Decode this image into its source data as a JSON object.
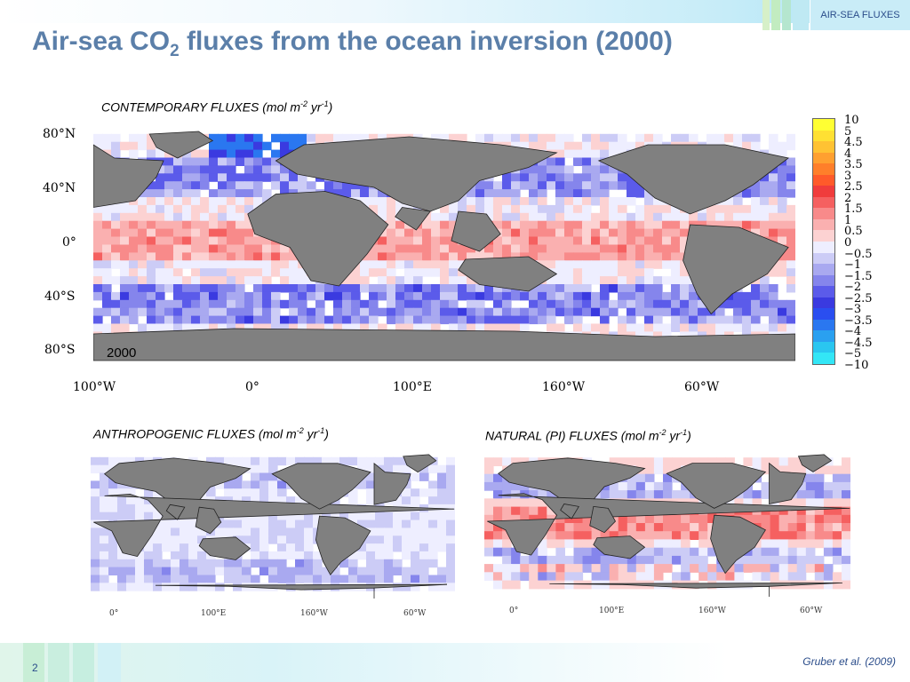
{
  "slide": {
    "section_tag": "AIR-SEA FLUXES",
    "title_main": "Air-sea CO",
    "title_sub": "2",
    "title_rest": " fluxes from the ocean inversion (2000)",
    "page_number": "2",
    "citation": "Gruber et al. (2009)"
  },
  "maps": {
    "contemporary": {
      "label_main": "CONTEMPORARY FLUXES (mol m",
      "label_exp1": "-2",
      "label_mid": " yr",
      "label_exp2": "-1",
      "label_end": ")",
      "year": "2000",
      "lat_ticks": [
        "80°N",
        "40°N",
        "0°",
        "40°S",
        "80°S"
      ],
      "lon_ticks": [
        "100°W",
        "0°",
        "100°E",
        "160°W",
        "60°W"
      ]
    },
    "anthropogenic": {
      "label_main": "ANTHROPOGENIC FLUXES (mol m",
      "label_exp1": "-2",
      "label_mid": " yr",
      "label_exp2": "-1",
      "label_end": ")",
      "lon_ticks": [
        "0°",
        "100°E",
        "160°W",
        "60°W"
      ]
    },
    "natural": {
      "label_main": "NATURAL (PI) FLUXES (mol m",
      "label_exp1": "-2",
      "label_mid": " yr",
      "label_exp2": "-1",
      "label_end": ")",
      "lon_ticks": [
        "0°",
        "100°E",
        "160°W",
        "60°W"
      ]
    }
  },
  "colorbar": {
    "ticks": [
      "10",
      "5",
      "4.5",
      "4",
      "3.5",
      "3",
      "2.5",
      "2",
      "1.5",
      "1",
      "0.5",
      "0",
      "−0.5",
      "−1",
      "−1.5",
      "−2",
      "−2.5",
      "−3",
      "−3.5",
      "−4",
      "−4.5",
      "−5",
      "−10"
    ],
    "colors": [
      "#ffff33",
      "#ffe033",
      "#ffc233",
      "#ffa030",
      "#ff7f2a",
      "#ff5a2a",
      "#f03c3c",
      "#f56060",
      "#f88a8a",
      "#fab0b0",
      "#fcd2d2",
      "#eeeeff",
      "#ccccf6",
      "#a9a9f0",
      "#8585ec",
      "#5b5bea",
      "#3a3ae0",
      "#2a4ef0",
      "#2a77f0",
      "#2aa0f0",
      "#2ac6f0",
      "#33e6f6"
    ],
    "colors_note": ""
  }
}
